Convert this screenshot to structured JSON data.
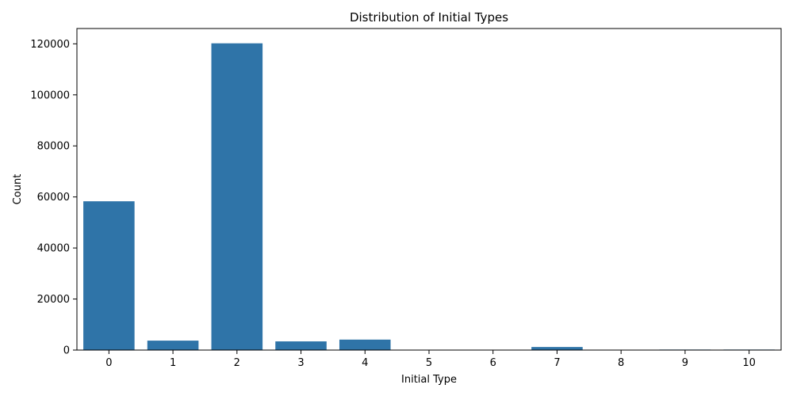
{
  "chart_data": {
    "type": "bar",
    "title": "Distribution of Initial Types",
    "xlabel": "Initial Type",
    "ylabel": "Count",
    "categories": [
      "0",
      "1",
      "2",
      "3",
      "4",
      "5",
      "6",
      "7",
      "8",
      "9",
      "10"
    ],
    "values": [
      58300,
      3700,
      120200,
      3400,
      4100,
      0,
      0,
      1200,
      0,
      200,
      200
    ],
    "ylim": [
      0,
      126000
    ],
    "yticks": [
      0,
      20000,
      40000,
      60000,
      80000,
      100000,
      120000
    ],
    "grid": false,
    "bar_color": "#2f74a8"
  }
}
